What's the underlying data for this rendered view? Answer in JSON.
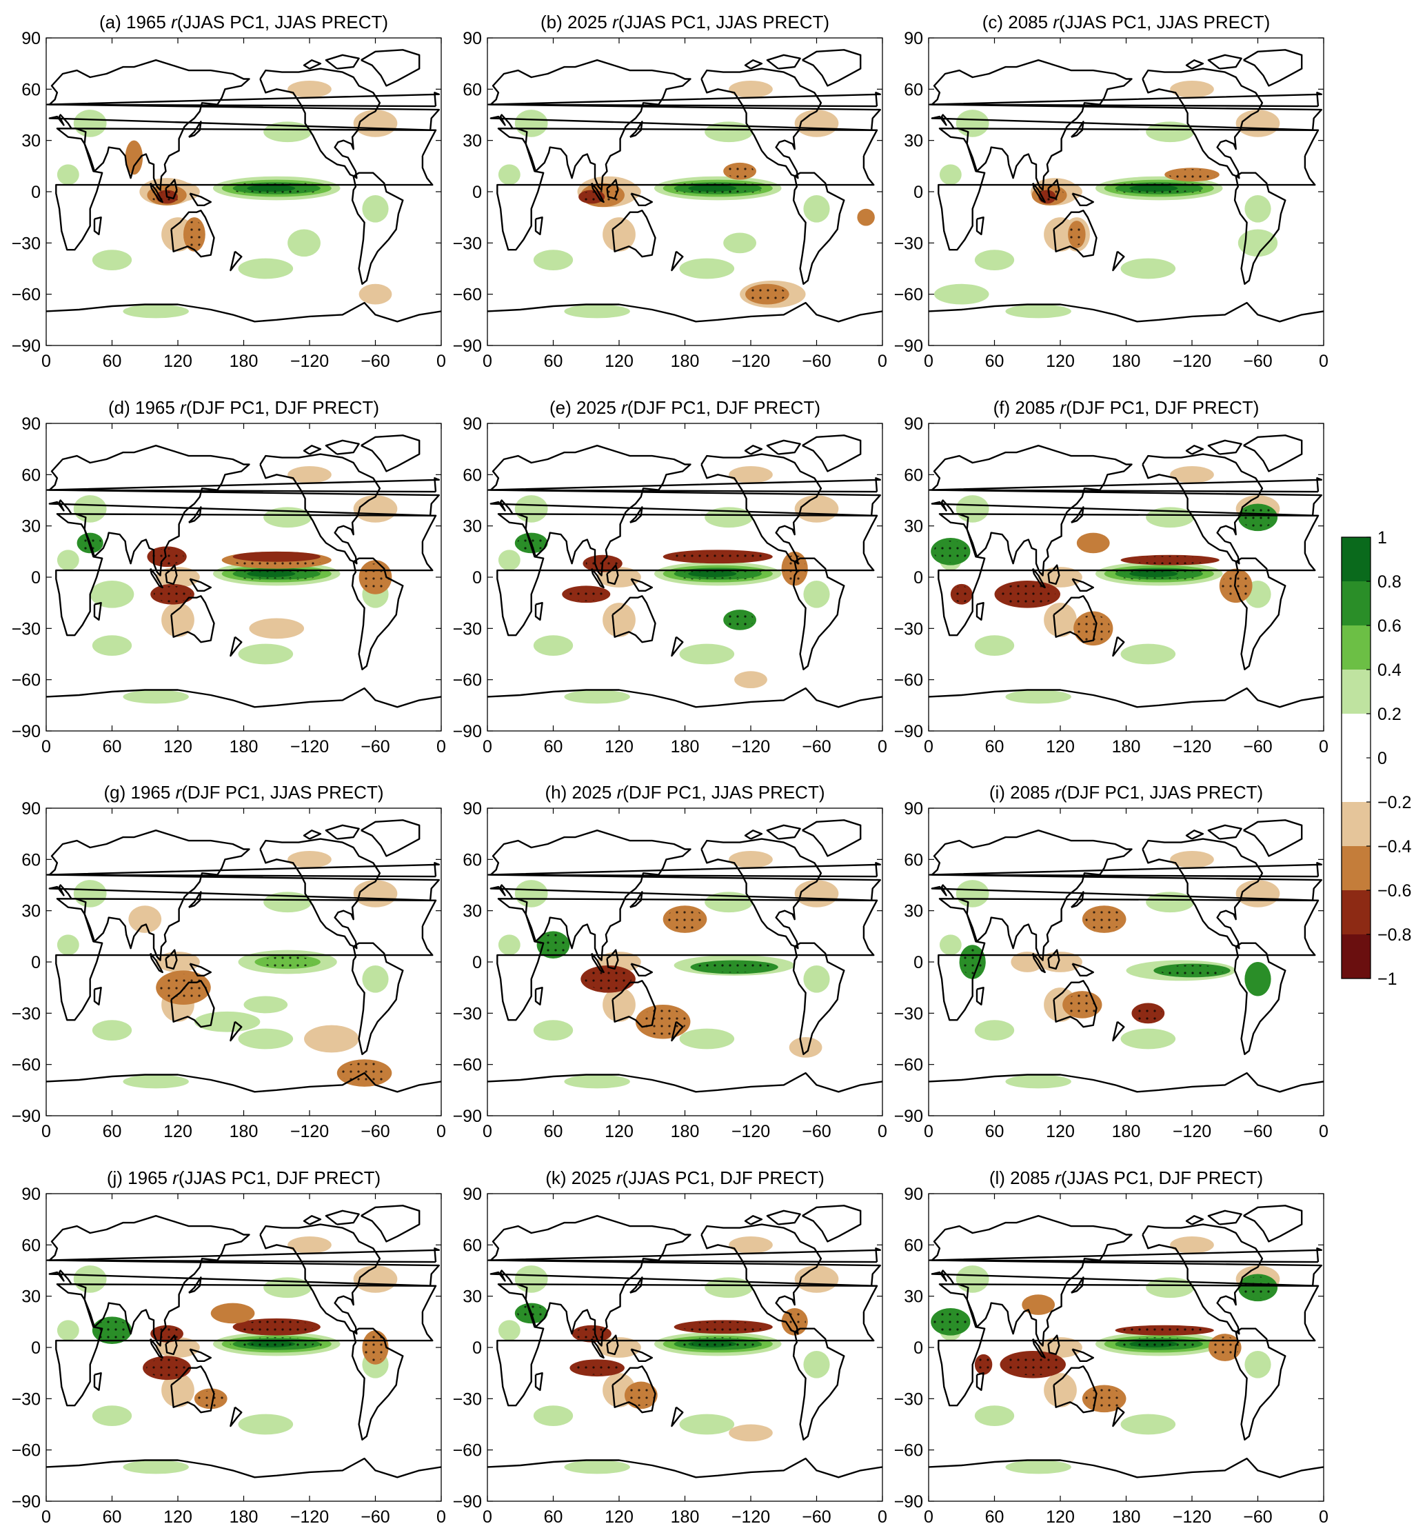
{
  "panels": [
    {
      "label": "(a)",
      "year": "1965",
      "r": "r",
      "args": "(JJAS PC1, JJAS PRECT)"
    },
    {
      "label": "(b)",
      "year": "2025",
      "r": "r",
      "args": "(JJAS PC1, JJAS PRECT)"
    },
    {
      "label": "(c)",
      "year": "2085",
      "r": "r",
      "args": "(JJAS PC1, JJAS PRECT)"
    },
    {
      "label": "(d)",
      "year": "1965",
      "r": "r",
      "args": "(DJF PC1, DJF PRECT)"
    },
    {
      "label": "(e)",
      "year": "2025",
      "r": "r",
      "args": "(DJF PC1, DJF PRECT)"
    },
    {
      "label": "(f)",
      "year": "2085",
      "r": "r",
      "args": "(DJF PC1, DJF PRECT)"
    },
    {
      "label": "(g)",
      "year": "1965",
      "r": "r",
      "args": "(DJF PC1, JJAS PRECT)"
    },
    {
      "label": "(h)",
      "year": "2025",
      "r": "r",
      "args": "(DJF PC1, JJAS PRECT)"
    },
    {
      "label": "(i)",
      "year": "2085",
      "r": "r",
      "args": "(DJF PC1, JJAS PRECT)"
    },
    {
      "label": "(j)",
      "year": "1965",
      "r": "r",
      "args": "(JJAS PC1, DJF PRECT)"
    },
    {
      "label": "(k)",
      "year": "2025",
      "r": "r",
      "args": "(JJAS PC1, DJF PRECT)"
    },
    {
      "label": "(l)",
      "year": "2085",
      "r": "r",
      "args": "(JJAS PC1, DJF PRECT)"
    }
  ],
  "axes": {
    "y_ticks": [
      "90",
      "60",
      "30",
      "0",
      "−30",
      "−60",
      "−90"
    ],
    "x_ticks": [
      "0",
      "60",
      "120",
      "180",
      "−120",
      "−60",
      "0"
    ]
  },
  "colorbar": {
    "ticks": [
      "1",
      "0.8",
      "0.6",
      "0.4",
      "0.2",
      "0",
      "−0.2",
      "−0.4",
      "−0.6",
      "−0.8",
      "−1"
    ],
    "bands": [
      "#0a6a1c",
      "#2a8e28",
      "#6cbf45",
      "#bfe3a0",
      "#ffffff",
      "#ffffff",
      "#e5c59a",
      "#c47d3a",
      "#8d2a14",
      "#6a0f0f"
    ]
  },
  "colors": {
    "dark_green": "#0a6a1c",
    "green": "#2a8e28",
    "mid_green": "#6cbf45",
    "light_green": "#bfe3a0",
    "light_brown": "#e5c59a",
    "brown": "#c47d3a",
    "dark_brown": "#8d2a14",
    "darkest_brown": "#6a0f0f"
  }
}
